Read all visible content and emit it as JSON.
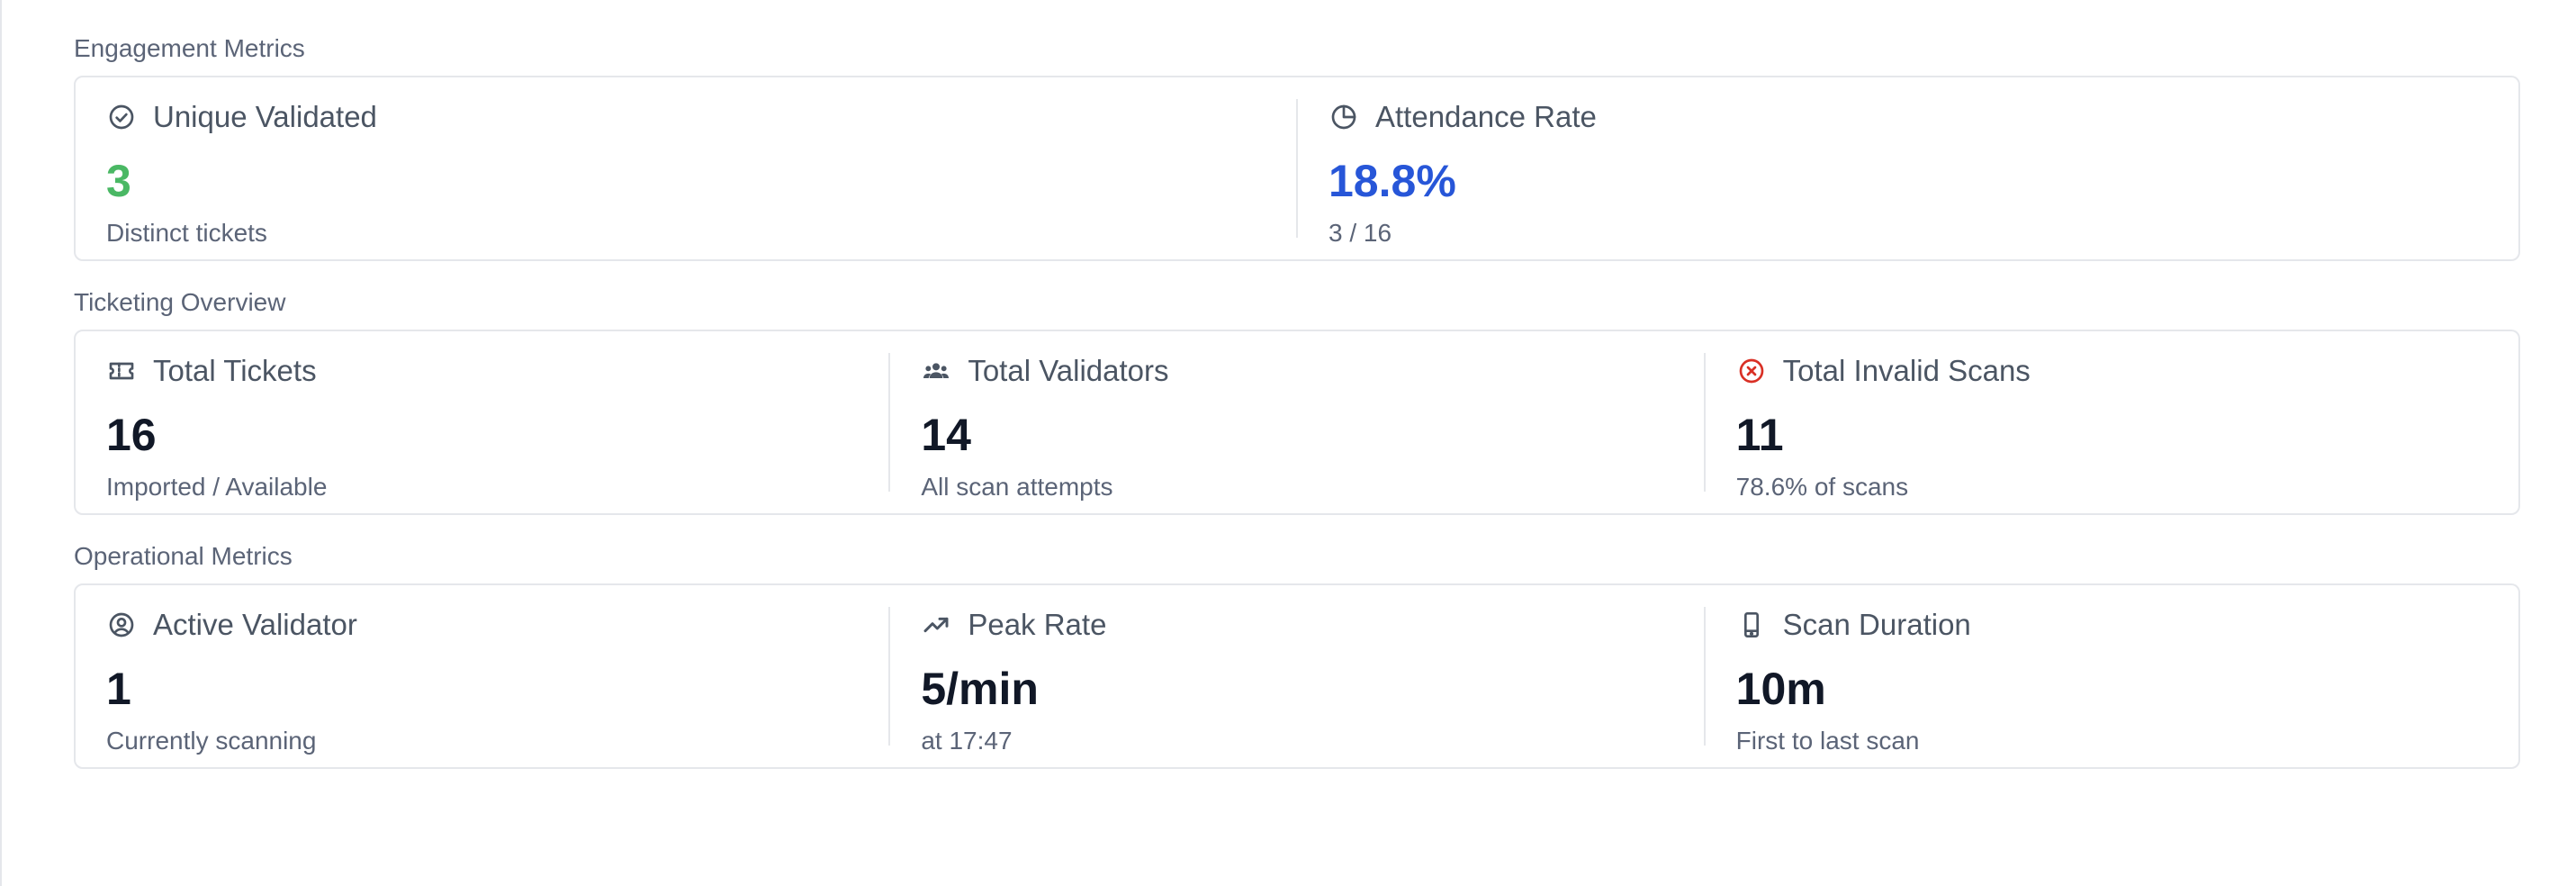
{
  "sections": [
    {
      "title": "Engagement Metrics",
      "stats": [
        {
          "label": "Unique Validated",
          "value": "3",
          "sub": "Distinct tickets",
          "icon": "check-circle-icon",
          "value_color": "#4ab864"
        },
        {
          "label": "Attendance Rate",
          "value": "18.8%",
          "sub": "3 / 16",
          "icon": "pie-chart-icon",
          "value_color": "#2756d8"
        }
      ]
    },
    {
      "title": "Ticketing Overview",
      "stats": [
        {
          "label": "Total Tickets",
          "value": "16",
          "sub": "Imported / Available",
          "icon": "ticket-icon",
          "value_color": "#111827"
        },
        {
          "label": "Total Validators",
          "value": "14",
          "sub": "All scan attempts",
          "icon": "people-icon",
          "value_color": "#111827"
        },
        {
          "label": "Total Invalid Scans",
          "value": "11",
          "sub": "78.6% of scans",
          "icon": "x-circle-icon",
          "value_color": "#111827"
        }
      ]
    },
    {
      "title": "Operational Metrics",
      "stats": [
        {
          "label": "Active Validator",
          "value": "1",
          "sub": "Currently scanning",
          "icon": "user-circle-icon",
          "value_color": "#111827"
        },
        {
          "label": "Peak Rate",
          "value": "5/min",
          "sub": "at 17:47",
          "icon": "trending-up-icon",
          "value_color": "#111827"
        },
        {
          "label": "Scan Duration",
          "value": "10m",
          "sub": "First to last scan",
          "icon": "phone-icon",
          "value_color": "#111827"
        }
      ]
    }
  ],
  "colors": {
    "muted": "#5b6477",
    "icon": "#4b5563",
    "danger": "#d93025",
    "border": "#e5e7eb"
  }
}
